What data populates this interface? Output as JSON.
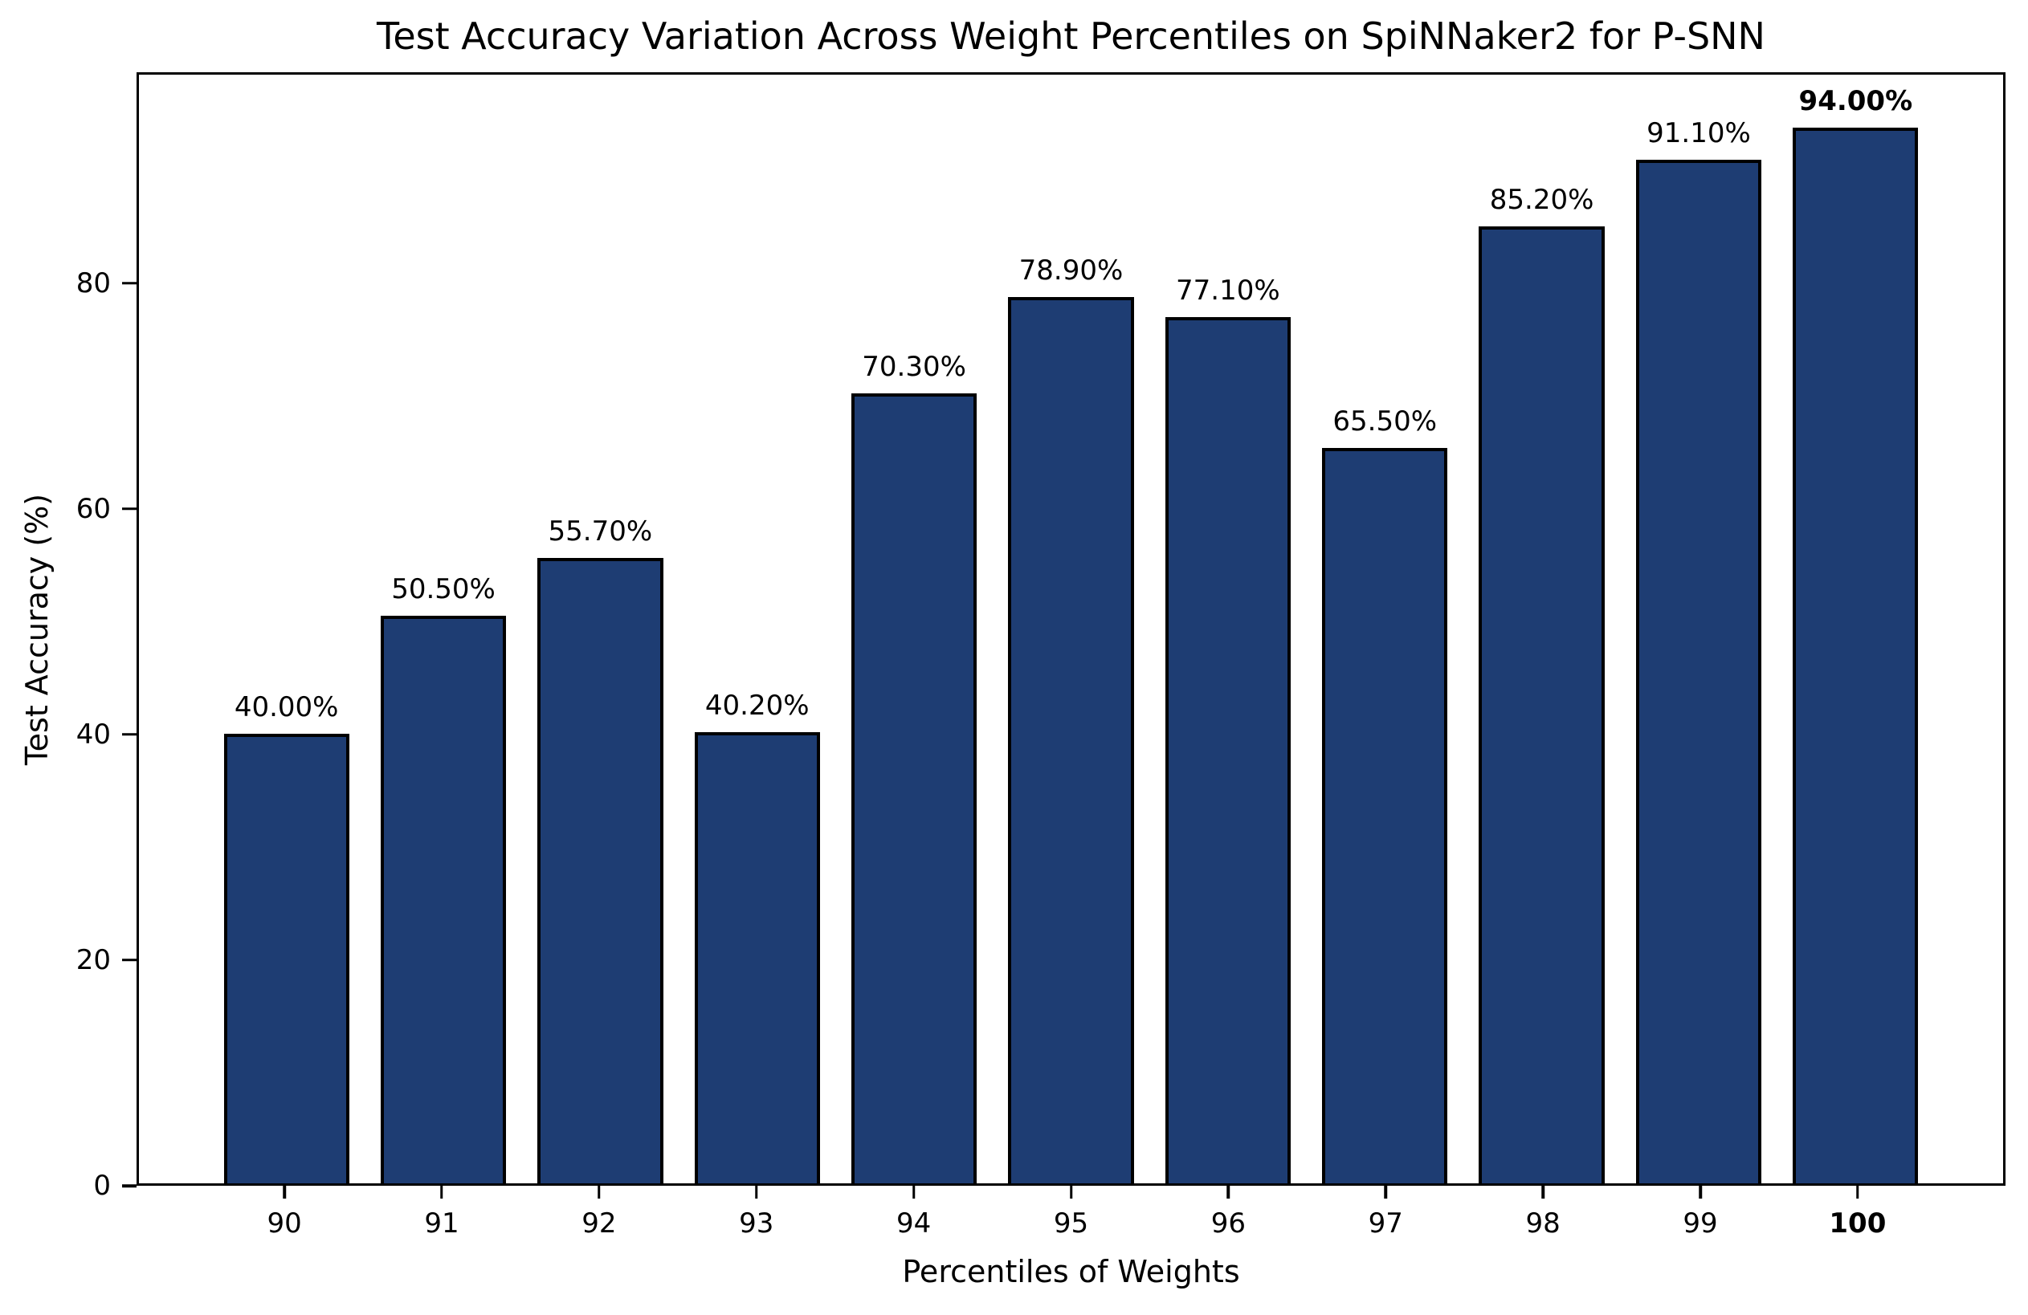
{
  "chart_data": {
    "type": "bar",
    "title": "Test Accuracy Variation Across Weight Percentiles on SpiNNaker2 for P-SNN",
    "xlabel": "Percentiles of Weights",
    "ylabel": "Test Accuracy (%)",
    "categories": [
      "90",
      "91",
      "92",
      "93",
      "94",
      "95",
      "96",
      "97",
      "98",
      "99",
      "100"
    ],
    "values": [
      40.0,
      50.5,
      55.7,
      40.2,
      70.3,
      78.9,
      77.1,
      65.5,
      85.2,
      91.1,
      94.0
    ],
    "bar_labels": [
      "40.00%",
      "50.50%",
      "55.70%",
      "40.20%",
      "70.30%",
      "78.90%",
      "77.10%",
      "65.50%",
      "85.20%",
      "91.10%",
      "94.00%"
    ],
    "yticks": [
      0,
      20,
      40,
      60,
      80
    ],
    "ylim": [
      0,
      98.7
    ],
    "grid": false,
    "legend_position": "none",
    "bar_color": "#1e3d73",
    "bar_edge_color": "#000000",
    "highlighted_category": "100",
    "highlighted_label": "94.00%"
  }
}
